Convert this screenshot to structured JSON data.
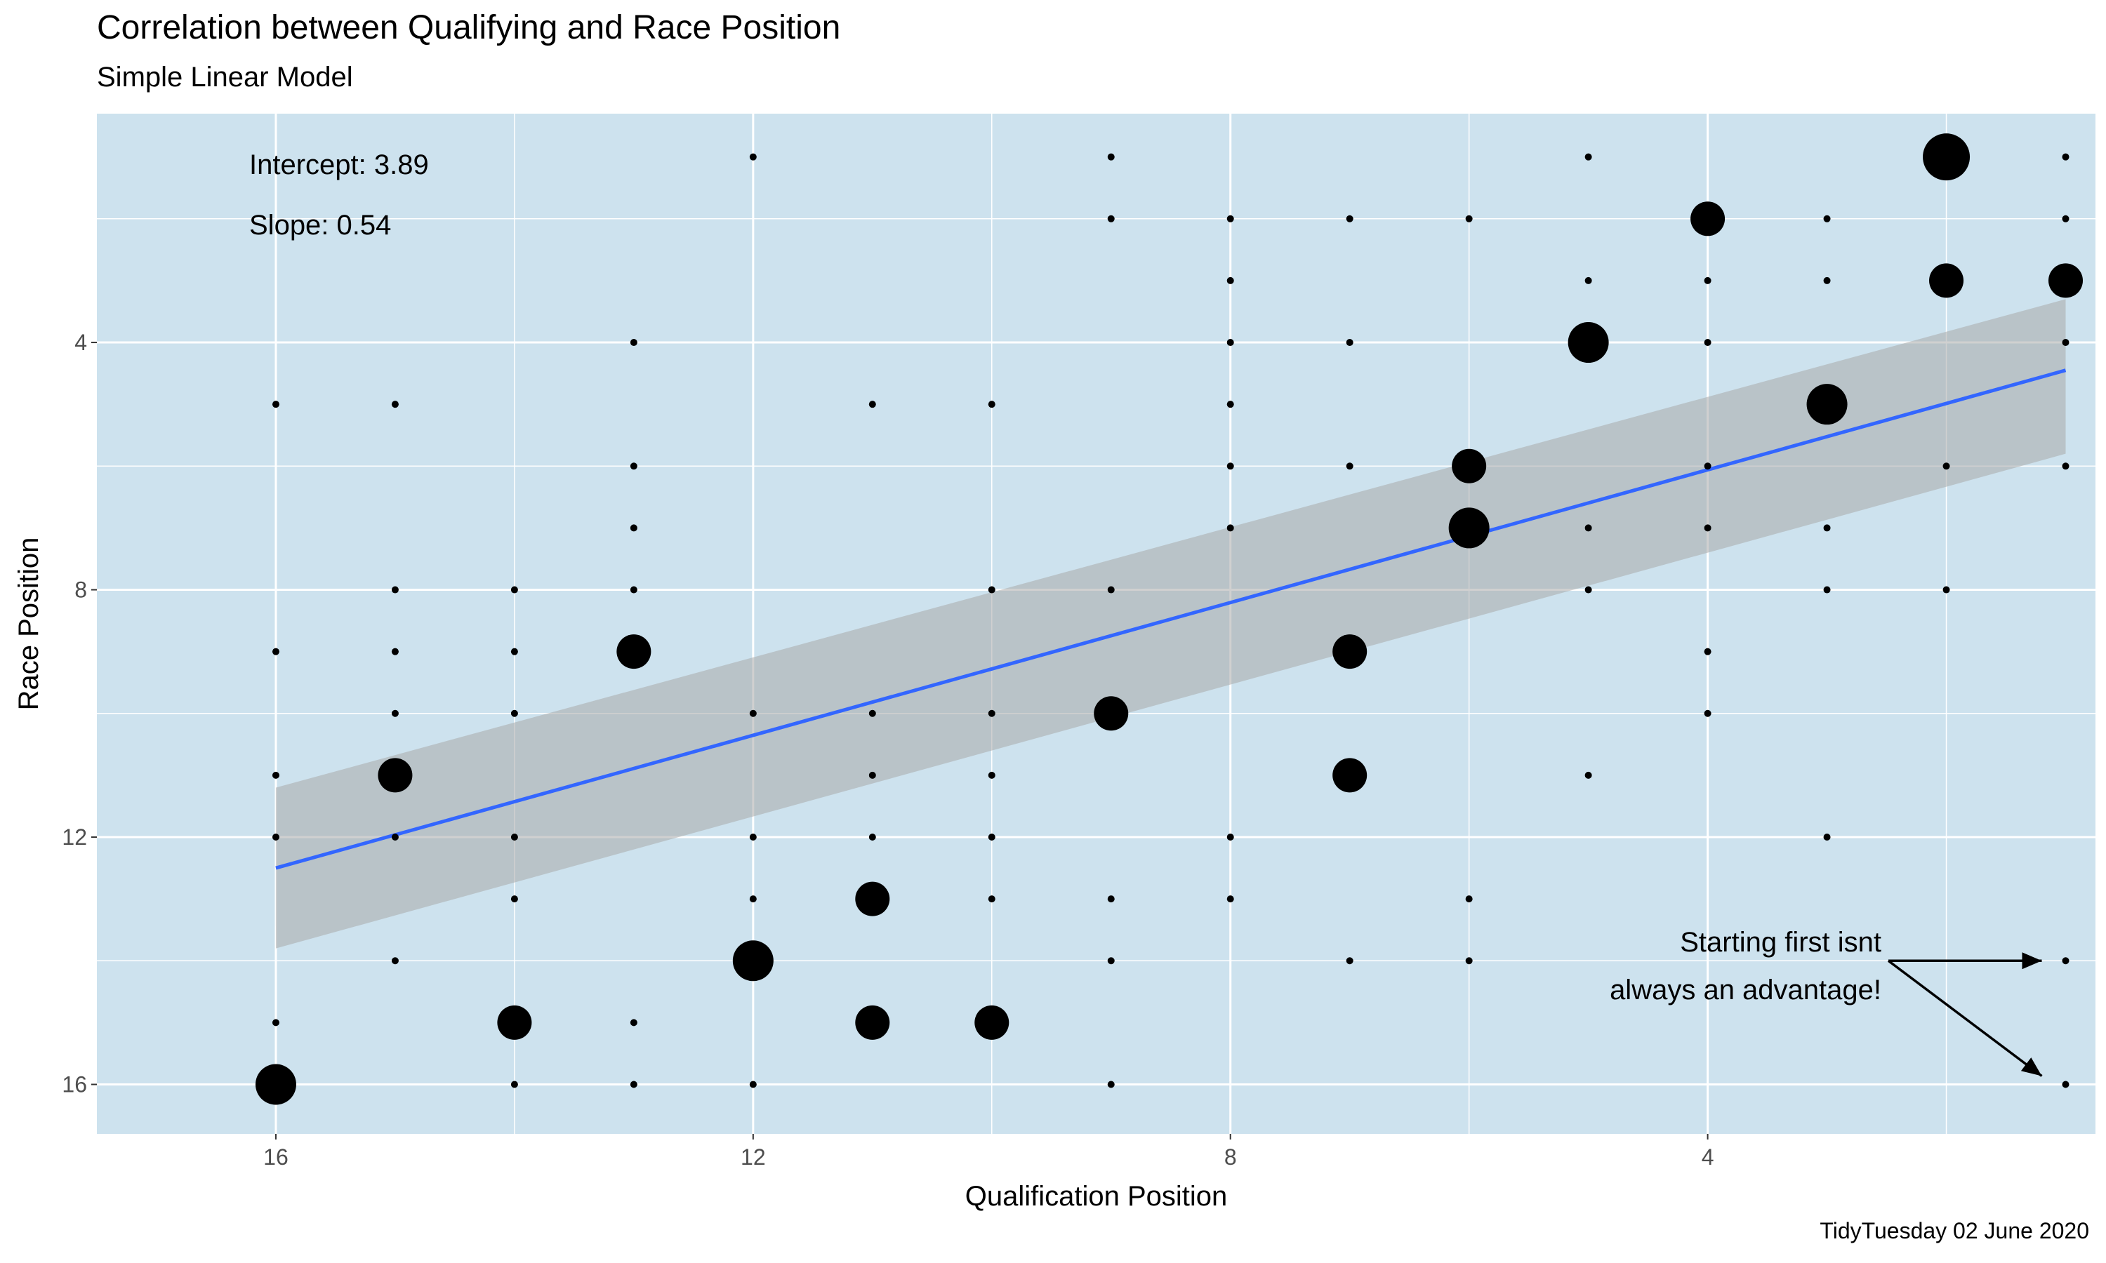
{
  "chart_data": {
    "type": "scatter",
    "title": "Correlation between Qualifying and Race Position",
    "subtitle": "Simple Linear Model",
    "xlabel": "Qualification Position",
    "ylabel": "Race Position",
    "caption": "TidyTuesday 02 June 2020",
    "x_reversed": true,
    "y_reversed": true,
    "xlim": [
      0.75,
      17.5
    ],
    "ylim": [
      0.3,
      16.8
    ],
    "x_ticks": [
      16,
      12,
      8,
      4
    ],
    "y_ticks": [
      4,
      8,
      12,
      16
    ],
    "grid": true,
    "background": "#cde2ee",
    "line_color": "#3366ff",
    "band_color": "#a9a9a9",
    "point_color": "#000000",
    "annotations": {
      "intercept": "Intercept: 3.89",
      "slope": "Slope: 0.54",
      "note_line1": "Starting first isnt",
      "note_line2": "always an advantage!"
    },
    "fit": {
      "x": [
        16,
        1
      ],
      "y": [
        12.5,
        4.45
      ],
      "band_lower": [
        11.2,
        3.3
      ],
      "band_upper": [
        13.8,
        5.8
      ]
    },
    "points": [
      {
        "x": 12,
        "y": 1,
        "n": 1
      },
      {
        "x": 9,
        "y": 1,
        "n": 1
      },
      {
        "x": 5,
        "y": 1,
        "n": 1
      },
      {
        "x": 2,
        "y": 1,
        "n": 5
      },
      {
        "x": 1,
        "y": 1,
        "n": 1
      },
      {
        "x": 9,
        "y": 2,
        "n": 1
      },
      {
        "x": 8,
        "y": 2,
        "n": 1
      },
      {
        "x": 7,
        "y": 2,
        "n": 1
      },
      {
        "x": 6,
        "y": 2,
        "n": 1
      },
      {
        "x": 4,
        "y": 2,
        "n": 3
      },
      {
        "x": 3,
        "y": 2,
        "n": 1
      },
      {
        "x": 1,
        "y": 2,
        "n": 1
      },
      {
        "x": 8,
        "y": 3,
        "n": 1
      },
      {
        "x": 5,
        "y": 3,
        "n": 1
      },
      {
        "x": 4,
        "y": 3,
        "n": 1
      },
      {
        "x": 3,
        "y": 3,
        "n": 1
      },
      {
        "x": 2,
        "y": 3,
        "n": 3
      },
      {
        "x": 1,
        "y": 3,
        "n": 3
      },
      {
        "x": 13,
        "y": 4,
        "n": 1
      },
      {
        "x": 8,
        "y": 4,
        "n": 1
      },
      {
        "x": 7,
        "y": 4,
        "n": 1
      },
      {
        "x": 5,
        "y": 4,
        "n": 4
      },
      {
        "x": 4,
        "y": 4,
        "n": 1
      },
      {
        "x": 1,
        "y": 4,
        "n": 1
      },
      {
        "x": 16,
        "y": 5,
        "n": 1
      },
      {
        "x": 15,
        "y": 5,
        "n": 1
      },
      {
        "x": 11,
        "y": 5,
        "n": 1
      },
      {
        "x": 10,
        "y": 5,
        "n": 1
      },
      {
        "x": 8,
        "y": 5,
        "n": 1
      },
      {
        "x": 3,
        "y": 5,
        "n": 4
      },
      {
        "x": 13,
        "y": 6,
        "n": 1
      },
      {
        "x": 8,
        "y": 6,
        "n": 1
      },
      {
        "x": 7,
        "y": 6,
        "n": 1
      },
      {
        "x": 6,
        "y": 6,
        "n": 3
      },
      {
        "x": 4,
        "y": 6,
        "n": 1
      },
      {
        "x": 2,
        "y": 6,
        "n": 1
      },
      {
        "x": 1,
        "y": 6,
        "n": 1
      },
      {
        "x": 13,
        "y": 7,
        "n": 1
      },
      {
        "x": 8,
        "y": 7,
        "n": 1
      },
      {
        "x": 6,
        "y": 7,
        "n": 4
      },
      {
        "x": 5,
        "y": 7,
        "n": 1
      },
      {
        "x": 4,
        "y": 7,
        "n": 1
      },
      {
        "x": 3,
        "y": 7,
        "n": 1
      },
      {
        "x": 15,
        "y": 8,
        "n": 1
      },
      {
        "x": 14,
        "y": 8,
        "n": 1
      },
      {
        "x": 13,
        "y": 8,
        "n": 1
      },
      {
        "x": 10,
        "y": 8,
        "n": 1
      },
      {
        "x": 9,
        "y": 8,
        "n": 1
      },
      {
        "x": 5,
        "y": 8,
        "n": 1
      },
      {
        "x": 3,
        "y": 8,
        "n": 1
      },
      {
        "x": 2,
        "y": 8,
        "n": 1
      },
      {
        "x": 16,
        "y": 9,
        "n": 1
      },
      {
        "x": 15,
        "y": 9,
        "n": 1
      },
      {
        "x": 14,
        "y": 9,
        "n": 1
      },
      {
        "x": 13,
        "y": 9,
        "n": 3
      },
      {
        "x": 7,
        "y": 9,
        "n": 3
      },
      {
        "x": 4,
        "y": 9,
        "n": 1
      },
      {
        "x": 15,
        "y": 10,
        "n": 1
      },
      {
        "x": 14,
        "y": 10,
        "n": 1
      },
      {
        "x": 12,
        "y": 10,
        "n": 1
      },
      {
        "x": 11,
        "y": 10,
        "n": 1
      },
      {
        "x": 10,
        "y": 10,
        "n": 1
      },
      {
        "x": 9,
        "y": 10,
        "n": 3
      },
      {
        "x": 4,
        "y": 10,
        "n": 1
      },
      {
        "x": 16,
        "y": 11,
        "n": 1
      },
      {
        "x": 15,
        "y": 11,
        "n": 3
      },
      {
        "x": 11,
        "y": 11,
        "n": 1
      },
      {
        "x": 10,
        "y": 11,
        "n": 1
      },
      {
        "x": 7,
        "y": 11,
        "n": 3
      },
      {
        "x": 5,
        "y": 11,
        "n": 1
      },
      {
        "x": 16,
        "y": 12,
        "n": 1
      },
      {
        "x": 15,
        "y": 12,
        "n": 1
      },
      {
        "x": 14,
        "y": 12,
        "n": 1
      },
      {
        "x": 12,
        "y": 12,
        "n": 1
      },
      {
        "x": 11,
        "y": 12,
        "n": 1
      },
      {
        "x": 10,
        "y": 12,
        "n": 1
      },
      {
        "x": 8,
        "y": 12,
        "n": 1
      },
      {
        "x": 3,
        "y": 12,
        "n": 1
      },
      {
        "x": 14,
        "y": 13,
        "n": 1
      },
      {
        "x": 12,
        "y": 13,
        "n": 1
      },
      {
        "x": 11,
        "y": 13,
        "n": 3
      },
      {
        "x": 10,
        "y": 13,
        "n": 1
      },
      {
        "x": 9,
        "y": 13,
        "n": 1
      },
      {
        "x": 8,
        "y": 13,
        "n": 1
      },
      {
        "x": 6,
        "y": 13,
        "n": 1
      },
      {
        "x": 15,
        "y": 14,
        "n": 1
      },
      {
        "x": 12,
        "y": 14,
        "n": 4
      },
      {
        "x": 9,
        "y": 14,
        "n": 1
      },
      {
        "x": 7,
        "y": 14,
        "n": 1
      },
      {
        "x": 6,
        "y": 14,
        "n": 1
      },
      {
        "x": 1,
        "y": 14,
        "n": 1
      },
      {
        "x": 16,
        "y": 15,
        "n": 1
      },
      {
        "x": 14,
        "y": 15,
        "n": 3
      },
      {
        "x": 13,
        "y": 15,
        "n": 1
      },
      {
        "x": 11,
        "y": 15,
        "n": 3
      },
      {
        "x": 10,
        "y": 15,
        "n": 3
      },
      {
        "x": 16,
        "y": 16,
        "n": 4
      },
      {
        "x": 14,
        "y": 16,
        "n": 1
      },
      {
        "x": 13,
        "y": 16,
        "n": 1
      },
      {
        "x": 12,
        "y": 16,
        "n": 1
      },
      {
        "x": 9,
        "y": 16,
        "n": 1
      },
      {
        "x": 1,
        "y": 16,
        "n": 1
      }
    ]
  }
}
